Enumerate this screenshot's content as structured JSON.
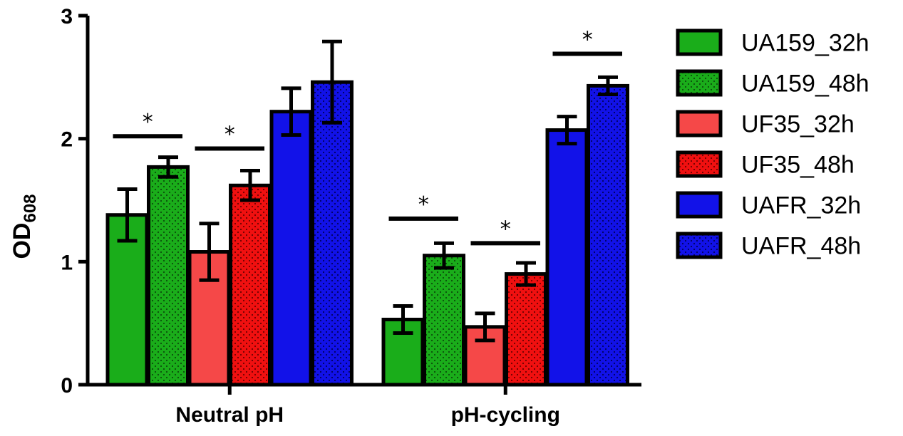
{
  "chart_data": {
    "type": "bar",
    "title": "",
    "xlabel": "",
    "ylabel": "OD",
    "ylabel_sub": "608",
    "ylim": [
      0,
      3
    ],
    "yticks": [
      "0",
      "1",
      "2",
      "3"
    ],
    "categories": [
      "Neutral pH",
      "pH-cycling"
    ],
    "series": [
      {
        "name": "UA159_32h",
        "color": "#1aad1a",
        "dotted": false,
        "values": [
          1.38,
          0.53
        ],
        "errors": [
          0.21,
          0.11
        ]
      },
      {
        "name": "UA159_48h",
        "color": "#1aad1a",
        "dotted": true,
        "values": [
          1.77,
          1.05
        ],
        "errors": [
          0.08,
          0.1
        ]
      },
      {
        "name": "UF35_32h",
        "color": "#f54848",
        "dotted": false,
        "values": [
          1.08,
          0.47
        ],
        "errors": [
          0.23,
          0.11
        ]
      },
      {
        "name": "UF35_48h",
        "color": "#f01010",
        "dotted": true,
        "values": [
          1.62,
          0.9
        ],
        "errors": [
          0.12,
          0.09
        ]
      },
      {
        "name": "UAFR_32h",
        "color": "#1212e8",
        "dotted": false,
        "values": [
          2.22,
          2.07
        ],
        "errors": [
          0.19,
          0.11
        ]
      },
      {
        "name": "UAFR_48h",
        "color": "#1212e8",
        "dotted": true,
        "values": [
          2.46,
          2.43
        ],
        "errors": [
          0.33,
          0.07
        ]
      }
    ],
    "significance": [
      {
        "category": 0,
        "from": 0,
        "to": 1,
        "label": "*",
        "level": 2.02
      },
      {
        "category": 0,
        "from": 2,
        "to": 3,
        "label": "*",
        "level": 1.92
      },
      {
        "category": 1,
        "from": 0,
        "to": 1,
        "label": "*",
        "level": 1.35
      },
      {
        "category": 1,
        "from": 2,
        "to": 3,
        "label": "*",
        "level": 1.15
      },
      {
        "category": 1,
        "from": 4,
        "to": 5,
        "label": "*",
        "level": 2.69
      }
    ],
    "legend_position": "right"
  }
}
